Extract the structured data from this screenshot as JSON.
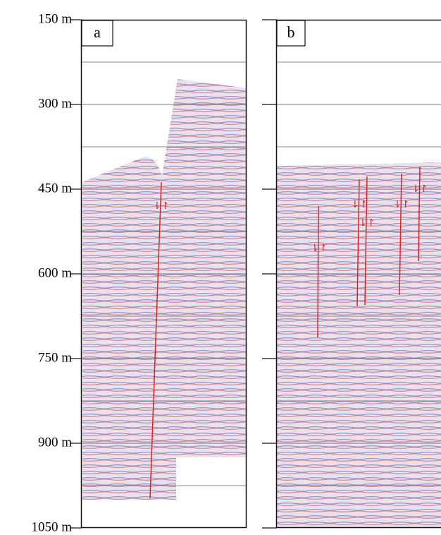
{
  "depth_axis": {
    "ticks": [
      {
        "value": 150,
        "label": "150 m"
      },
      {
        "value": 300,
        "label": "300 m"
      },
      {
        "value": 450,
        "label": "450 m"
      },
      {
        "value": 600,
        "label": "600 m"
      },
      {
        "value": 750,
        "label": "750 m"
      },
      {
        "value": 900,
        "label": "900 m"
      },
      {
        "value": 1050,
        "label": "1050 m"
      }
    ]
  },
  "panels": [
    {
      "label": "a"
    },
    {
      "label": "b"
    }
  ]
}
